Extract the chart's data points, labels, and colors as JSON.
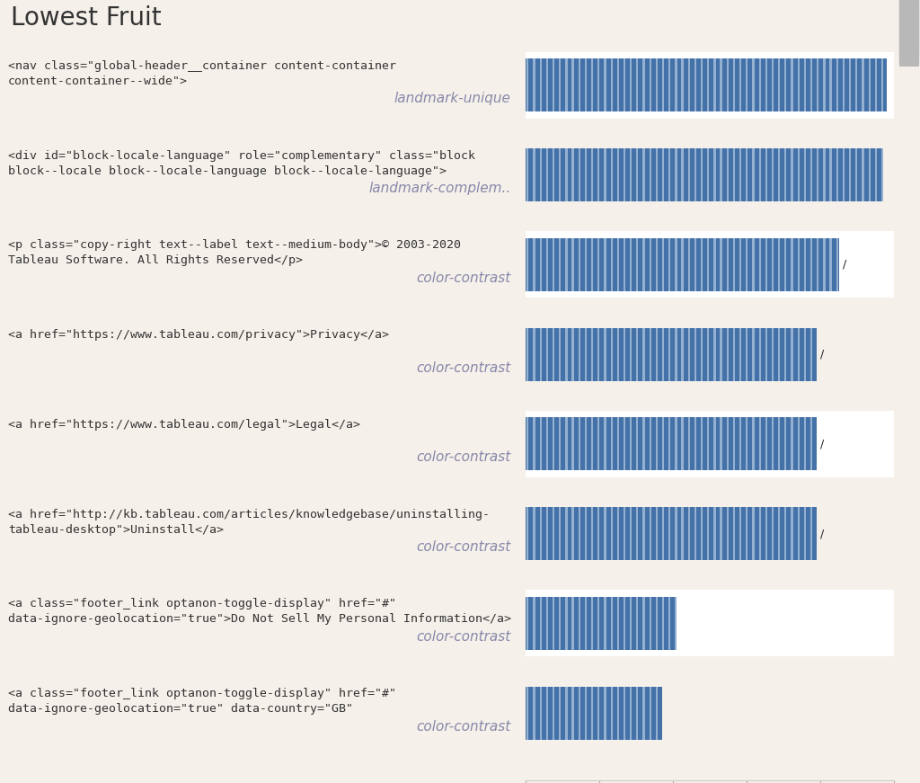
{
  "title": "Lowest Fruit",
  "title_fontsize": 20,
  "title_fontweight": "normal",
  "rows": [
    {
      "error_html": "<nav class=\"global-header__container content-container\ncontent-container--wide\">",
      "error_type": "landmark-unique",
      "bar_value": 98,
      "label": ""
    },
    {
      "error_html": "<div id=\"block-locale-language\" role=\"complementary\" class=\"block\nblock--locale block--locale-language block--locale-language\">",
      "error_type": "landmark-complem..",
      "bar_value": 97,
      "label": ""
    },
    {
      "error_html": "<p class=\"copy-right text--label text--medium-body\">© 2003-2020\nTableau Software. All Rights Reserved</p>",
      "error_type": "color-contrast",
      "bar_value": 85,
      "label": "/"
    },
    {
      "error_html": "<a href=\"https://www.tableau.com/privacy\">Privacy</a>",
      "error_type": "color-contrast",
      "bar_value": 79,
      "label": "/"
    },
    {
      "error_html": "<a href=\"https://www.tableau.com/legal\">Legal</a>",
      "error_type": "color-contrast",
      "bar_value": 79,
      "label": "/"
    },
    {
      "error_html": "<a href=\"http://kb.tableau.com/articles/knowledgebase/uninstalling-\ntableau-desktop\">Uninstall</a>",
      "error_type": "color-contrast",
      "bar_value": 79,
      "label": "/"
    },
    {
      "error_html": "<a class=\"footer_link optanon-toggle-display\" href=\"#\"\ndata-ignore-geolocation=\"true\">Do Not Sell My Personal Information</a>",
      "error_type": "color-contrast",
      "bar_value": 41,
      "label": ""
    },
    {
      "error_html": "<a class=\"footer_link optanon-toggle-display\" href=\"#\"\ndata-ignore-geolocation=\"true\" data-country=\"GB\"",
      "error_type": "color-contrast",
      "bar_value": 37,
      "label": ""
    }
  ],
  "xlim": [
    0,
    100
  ],
  "xticks": [
    0,
    20,
    40,
    60,
    80,
    100
  ],
  "bar_color": "#4472a8",
  "bar_stripe_color": "#d8e6f3",
  "row_bg_white": "#ffffff",
  "row_bg_beige": "#f5f0ea",
  "title_bg": "#f5f0ea",
  "border_color": "#d0ccc8",
  "text_color": "#333333",
  "type_color": "#8888aa",
  "html_fontsize": 9.5,
  "type_fontsize": 11,
  "scrollbar_bg": "#e0e0e0",
  "scrollbar_thumb": "#b8b8b8"
}
